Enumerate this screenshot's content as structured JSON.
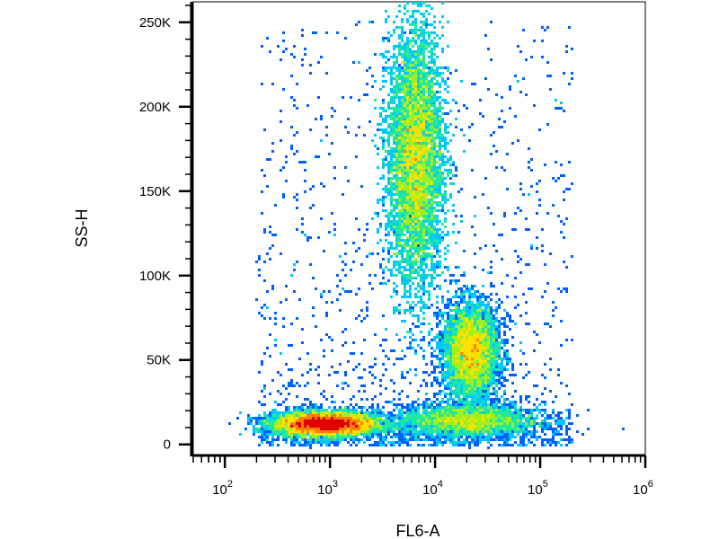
{
  "chart_data": {
    "type": "scatter",
    "subtype": "flow-cytometry-density-dot-plot",
    "xlabel": "FL6-A",
    "ylabel": "SS-H",
    "x_scale": "log",
    "xlim": [
      50,
      1000000
    ],
    "ylim": [
      -6000,
      262144
    ],
    "x_ticks": [
      {
        "value": 100,
        "base": "10",
        "exp": "2"
      },
      {
        "value": 1000,
        "base": "10",
        "exp": "3"
      },
      {
        "value": 10000,
        "base": "10",
        "exp": "4"
      },
      {
        "value": 100000,
        "base": "10",
        "exp": "5"
      },
      {
        "value": 1000000,
        "base": "10",
        "exp": "6"
      }
    ],
    "y_ticks": [
      {
        "value": 0,
        "label": "0"
      },
      {
        "value": 50000,
        "label": "50K"
      },
      {
        "value": 100000,
        "label": "100K"
      },
      {
        "value": 150000,
        "label": "150K"
      },
      {
        "value": 200000,
        "label": "200K"
      },
      {
        "value": 250000,
        "label": "250K"
      }
    ],
    "grid": false,
    "colormap": [
      "#0000c8",
      "#0060ff",
      "#00c8ff",
      "#20e8a0",
      "#a0f020",
      "#ffe000",
      "#ff8000",
      "#e00000"
    ],
    "populations": [
      {
        "center_x": 900,
        "center_y": 12000,
        "spread_log_x": 0.24,
        "spread_y": 3500,
        "relative_density": 1.0
      },
      {
        "center_x": 6500,
        "center_y": 170000,
        "spread_log_x": 0.13,
        "spread_y": 38000,
        "relative_density": 0.55
      },
      {
        "center_x": 22000,
        "center_y": 55000,
        "spread_log_x": 0.13,
        "spread_y": 14000,
        "relative_density": 0.5
      },
      {
        "center_x": 20000,
        "center_y": 14000,
        "spread_log_x": 0.35,
        "spread_y": 5000,
        "relative_density": 0.35
      }
    ]
  }
}
